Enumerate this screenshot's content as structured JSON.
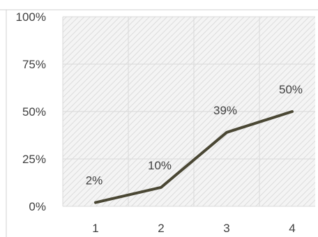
{
  "chart_data": {
    "type": "line",
    "title": "",
    "xlabel": "",
    "ylabel": "",
    "categories": [
      "1",
      "2",
      "3",
      "4"
    ],
    "x": [
      1,
      2,
      3,
      4
    ],
    "series": [
      {
        "values": [
          0.02,
          0.1,
          0.39,
          0.5
        ],
        "data_labels": [
          "2%",
          "10%",
          "39%",
          "50%"
        ],
        "color": "#4a4734"
      }
    ],
    "ylim": [
      0,
      1
    ],
    "yticks": [
      0,
      0.25,
      0.5,
      0.75,
      1
    ],
    "ytick_labels": [
      "0%",
      "25%",
      "50%",
      "75%",
      "100%"
    ],
    "xtick_labels": [
      "1",
      "2",
      "3",
      "4"
    ],
    "grid": true,
    "legend": "none",
    "plot_area_style": "diagonal-hatch",
    "colors": {
      "line": "#4a4734",
      "grid": "#d9d9d9",
      "hatch": "#e4e4e4",
      "text": "#404040"
    }
  }
}
